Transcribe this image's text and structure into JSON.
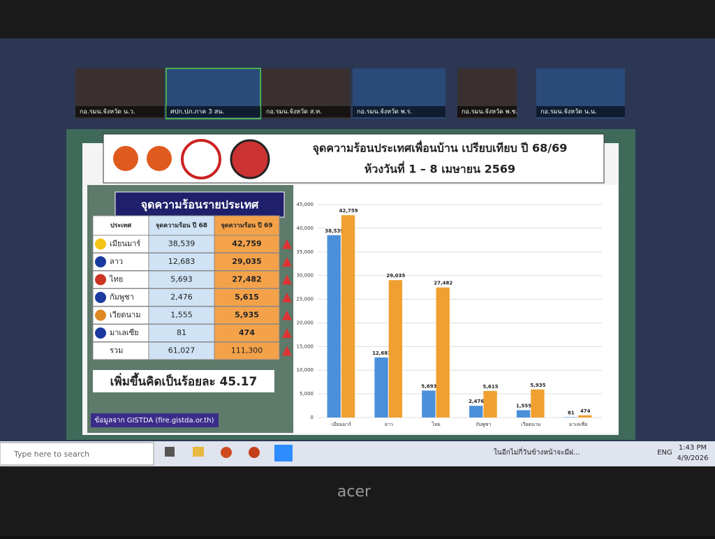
{
  "video_tiles": [
    "กอ.รมน.จังหวัด น.ว.",
    "ศปก.ปภ.ภาค 3 สน.",
    "กอ.รมน.จังหวัด ส.ท.",
    "กอ.รมน.จังหวัด พ.ร.",
    "กอ.รมน.จังหวัด พ.ช.",
    "กอ.รมน.จังหวัด น.น."
  ],
  "slide": {
    "title": "จุดความร้อนประเทศเพื่อนบ้าน เปรียบเทียบ ปี 68/69",
    "subtitle": "ห้วงวันที่ 1 – 8 เมษายน 2569",
    "panel_title": "จุดความร้อนรายประเทศ",
    "table": {
      "header": [
        "ประเทศ",
        "จุดความร้อน ปี 68",
        "จุดความร้อน ปี 69"
      ],
      "rows": [
        [
          "เมียนมาร์",
          "38,539",
          "42,759"
        ],
        [
          "ลาว",
          "12,683",
          "29,035"
        ],
        [
          "ไทย",
          "5,693",
          "27,482"
        ],
        [
          "กัมพูชา",
          "2,476",
          "5,615"
        ],
        [
          "เวียดนาม",
          "1,555",
          "5,935"
        ],
        [
          "มาเลเซีย",
          "81",
          "474"
        ]
      ],
      "total": [
        "รวม",
        "61,027",
        "111,300"
      ]
    },
    "summary": "เพิ่มขึ้นคิดเป็นร้อยละ 45.17",
    "source": "ข้อมูลจาก GISTDA (fire.gistda.or.th)"
  },
  "chart_data": {
    "type": "bar",
    "categories": [
      "เมียนมาร์",
      "ลาว",
      "ไทย",
      "กัมพูชา",
      "เวียดนาม",
      "มาเลเซีย"
    ],
    "series": [
      {
        "color": "#4a90d9",
        "values": [
          38539,
          12683,
          5693,
          2476,
          1555,
          81
        ],
        "value_labels": [
          "38,539",
          "12,683",
          "5,693",
          "2,476",
          "1,555",
          "81"
        ]
      },
      {
        "color": "#f0a030",
        "values": [
          42759,
          29035,
          27482,
          5615,
          5935,
          474
        ],
        "value_labels": [
          "42,759",
          "29,035",
          "27,482",
          "5,615",
          "5,935",
          "474"
        ]
      }
    ],
    "ylim": [
      0,
      45000
    ],
    "yticks": [
      0,
      {
        "value": 5000,
        "label": "5,000"
      },
      {
        "value": 10000,
        "label": "10,000"
      },
      {
        "value": 15000,
        "label": "15,000"
      },
      {
        "value": 20000,
        "label": "20,000"
      },
      {
        "value": 25000,
        "label": "25,000"
      },
      {
        "value": 30000,
        "label": "30,000"
      },
      {
        "value": 35000,
        "label": "35,000"
      },
      {
        "value": 40000,
        "label": "40,000"
      },
      {
        "value": 45000,
        "label": "45,000"
      }
    ],
    "grid": true
  },
  "taskbar": {
    "search": "Type here to search",
    "weather": "ในอีกไม่กี่วันข้างหน้าจะมีฝ...",
    "language": "ENG",
    "time": "1:43 PM",
    "date": "4/9/2026"
  },
  "monitor_brand": "acer"
}
